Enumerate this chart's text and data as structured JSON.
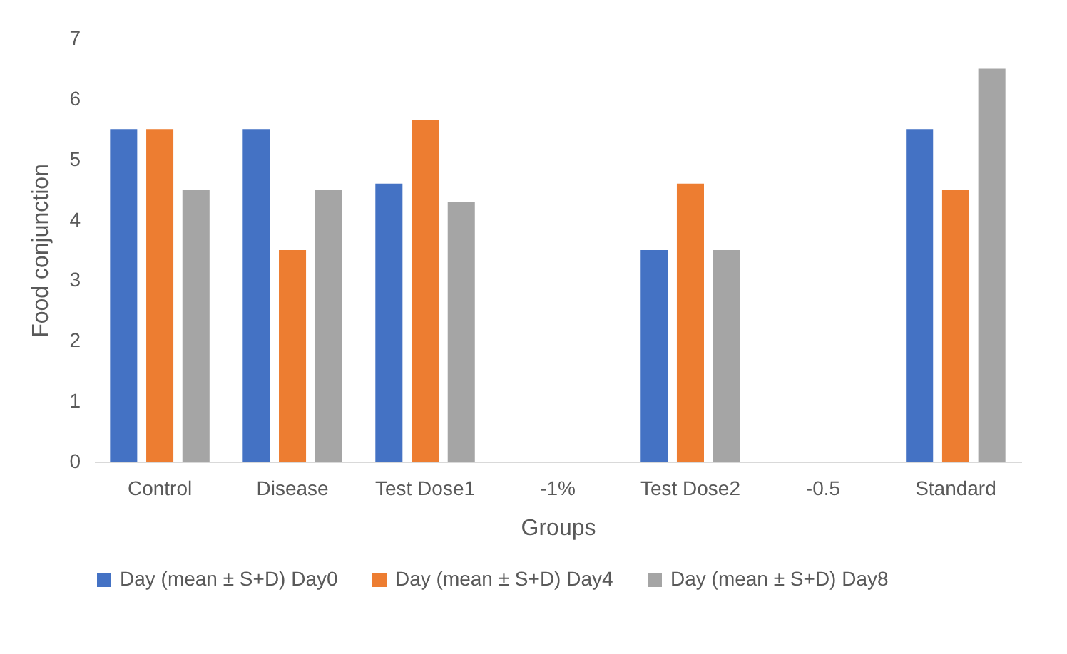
{
  "chart_data": {
    "type": "bar",
    "xlabel": "Groups",
    "ylabel": "Food conjunction",
    "categories": [
      "Control",
      "Disease",
      "Test Dose1",
      "-1%",
      "Test Dose2",
      "-0.5",
      "Standard"
    ],
    "series": [
      {
        "name": "Day (mean ± S+D) Day0",
        "color": "#4472c4",
        "values": [
          5.5,
          5.5,
          4.6,
          null,
          3.5,
          null,
          5.5
        ]
      },
      {
        "name": "Day (mean ± S+D) Day4",
        "color": "#ed7d31",
        "values": [
          5.5,
          3.5,
          5.65,
          null,
          4.6,
          null,
          4.5
        ]
      },
      {
        "name": "Day (mean ± S+D) Day8",
        "color": "#a5a5a5",
        "values": [
          4.5,
          4.5,
          4.3,
          null,
          3.5,
          null,
          6.5
        ]
      }
    ],
    "ylim": [
      0,
      7
    ],
    "yticks": [
      0,
      1,
      2,
      3,
      4,
      5,
      6,
      7
    ],
    "grid": false,
    "legend": "bottom"
  }
}
